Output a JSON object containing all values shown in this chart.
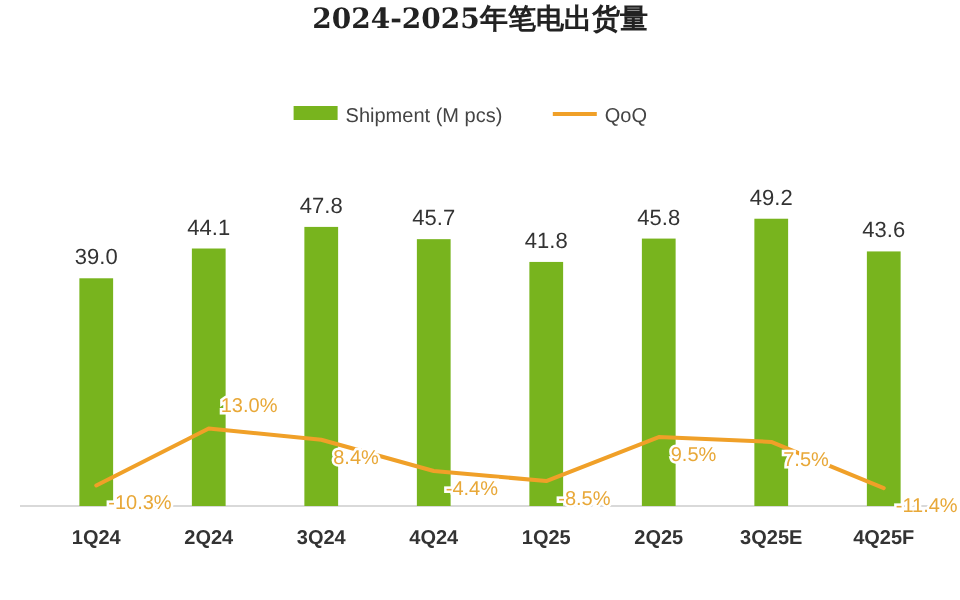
{
  "chart_data": {
    "type": "bar",
    "title": "2024-2025年笔电出货量",
    "categories": [
      "1Q24",
      "2Q24",
      "3Q24",
      "4Q24",
      "1Q25",
      "2Q25",
      "3Q25E",
      "4Q25F"
    ],
    "series": [
      {
        "name": "Shipment (M pcs)",
        "color": "#78b41e",
        "values": [
          39.0,
          44.1,
          47.8,
          45.7,
          41.8,
          45.8,
          49.2,
          43.6
        ],
        "value_labels": [
          "39.0",
          "44.1",
          "47.8",
          "45.7",
          "41.8",
          "45.8",
          "49.2",
          "43.6"
        ]
      },
      {
        "name": "QoQ",
        "type": "line",
        "axis": "y2",
        "color": "#f0a028",
        "values": [
          -10.3,
          13.0,
          8.4,
          -4.4,
          -8.5,
          9.5,
          7.5,
          -11.4
        ],
        "value_labels": [
          "-10.3%",
          "13.0%",
          "8.4%",
          "-4.4%",
          "-8.5%",
          "9.5%",
          "7.5%",
          "-11.4%"
        ]
      }
    ],
    "tick_labels": "x",
    "legend": "top",
    "grid": false,
    "marker": "none"
  }
}
